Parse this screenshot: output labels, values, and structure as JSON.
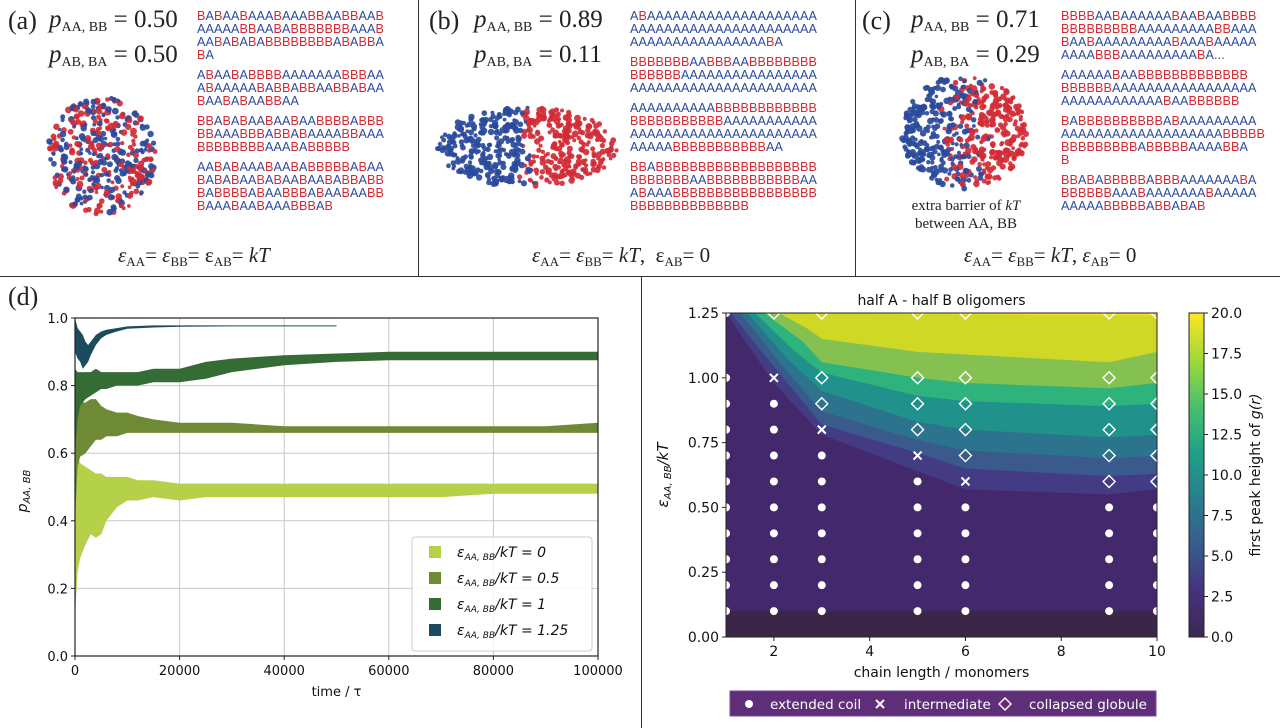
{
  "panels_top": [
    {
      "label": "(a)",
      "p_AA_BB": "0.50",
      "p_AB_BA": "0.50",
      "sequences": [
        [
          "BABAABAAABAAABBAABBAAB",
          "AAAAABBAABABBBBBBBAAAB",
          "AABABABABBBBBBBBABABBA",
          "BA"
        ],
        [
          "ABAABABBBBAAAAAAABBBAA",
          "ABAAAAABABBABBAABBABAA",
          "BAABABAABBAA"
        ],
        [
          "BBABABAABAABAABBBBABBB",
          "BBAAABBBABBABAAAABBAAA",
          "BBBBBBBBAAABABBBBB"
        ],
        [
          "AABABAAABAABABBBBBABAA",
          "BABABAABABAABAABABBABB",
          "BABBBBABAABBBABAABAABB",
          "BAAABAABAAABBBAB"
        ]
      ],
      "equation": {
        "parts": [
          "ε",
          "AA",
          "= ε",
          "BB",
          "= ε",
          "AB",
          "= ",
          "kT",
          ""
        ]
      },
      "equation_text": "εAA = εBB = εAB = kT",
      "molecule": "mixed-globule"
    },
    {
      "label": "(b)",
      "p_AA_BB": "0.89",
      "p_AB_BA": "0.11",
      "sequences": [
        [
          "ABAAAAAAAAAAAAAAAAAAAA",
          "AAAAAAAAAAAAAAAAAAAAAA",
          "AAAAAAAAAAAAAAAABA"
        ],
        [
          "BBBBBBBAABBBAABBBBBBBB",
          "BBBBBBAAAAAAAAAAAAAAAA",
          "AAAAAAAAAAAAAAAAAAAAAA"
        ],
        [
          "AAAAAAAAAABBBBBBBBBBBB",
          "BBBBBBBBBBBAAAAAAAAAAA",
          "AAAAAAAAAAAAAAAAAAAAAA",
          "AAAAABBBBBBBBBBBAA"
        ],
        [
          "BBABBBBBBBBBBBBBBBBBBB",
          "BBBBBBBAABBBBBBBBBBBAA",
          "ABAAABBBBBBBBBBBBBBBBB",
          "BBBBBBBBBBBBBB"
        ]
      ],
      "equation_text": "εAA = εBB = kT,  εAB = 0",
      "molecule": "phase-separated-blob"
    },
    {
      "label": "(c)",
      "p_AA_BB": "0.71",
      "p_AB_BA": "0.29",
      "sequences": [
        [
          "BBBBAABAAAAAABAABAABBBB",
          "BBBBBBBBBAAAAAAAAABBAAA",
          "BAABAAAAAAAAABAAABAAAAA",
          "AAAABBBAAAAAAAAABA..."
        ],
        [
          "AAAAAABAABBBBBBBBBBBBB",
          "BBBBBBAAAAAAAAAAAAAAAAA",
          "AAAAAAAAAAAABAABBBBBB"
        ],
        [
          "BABBBBBBBBBBABAAAAAAAAA",
          "AAAAAAAAAAAAAAAAAAABBBBB",
          "BBBBBBBBBABBBBBAAAABBA",
          "B"
        ],
        [
          "BBABABBBBBABBBAAAAAAABA",
          "BBBBBBAAABAAAAAAABAAAAA",
          "AAAAABBBBBABBABAB"
        ]
      ],
      "note_line1": "extra barrier of",
      "note_kT": "kT",
      "note_line2": "between AA, BB",
      "equation_text": "εAA = εBB = kT, εAB = 0",
      "molecule": "partially-separated-globule"
    }
  ],
  "sym": {
    "p": "p",
    "AA_BB": "AA, BB",
    "AB_BA": "AB, BA",
    "eq": " = ",
    "eps": "ε",
    "AA": "AA",
    "BB": "BB",
    "AB": "AB",
    "kT": "kT",
    "zero": "0",
    "comma": ", "
  },
  "colors": {
    "A_monomer": "#2a4a9c",
    "B_monomer": "#d32b35",
    "series_0": "#b5d14a",
    "series_0_5": "#6e8a34",
    "series_1": "#356b34",
    "series_1_25": "#1c4b5e",
    "legend_bar_bg": "#5e2f78"
  },
  "chart_data": [
    {
      "panel_label": "(d)",
      "type": "area",
      "title": "",
      "xlabel": "time / τ",
      "ylabel": "p_AA,BB",
      "ylabel_main": "p",
      "ylabel_sub": "AA, BB",
      "xlim": [
        0,
        100000
      ],
      "ylim": [
        0.0,
        1.0
      ],
      "xticks": [
        "0",
        "20000",
        "40000",
        "60000",
        "80000",
        "100000"
      ],
      "xtick_values": [
        0,
        20000,
        40000,
        60000,
        80000,
        100000
      ],
      "yticks": [
        "0.0",
        "0.2",
        "0.4",
        "0.6",
        "0.8",
        "1.0"
      ],
      "ytick_values": [
        0,
        0.2,
        0.4,
        0.6,
        0.8,
        1.0
      ],
      "grid": true,
      "legend_position": "lower-right",
      "series": [
        {
          "name": "ε_AA,BB/kT = 0",
          "legend_main": "ε",
          "legend_sub": "AA, BB",
          "legend_rest": "/kT = 0",
          "color": "#b5d14a",
          "x": [
            0,
            500,
            1000,
            2000,
            3000,
            4000,
            5000,
            6000,
            8000,
            10000,
            12000,
            15000,
            20000,
            25000,
            30000,
            40000,
            50000,
            60000,
            70000,
            80000,
            90000,
            100000
          ],
          "upper": [
            0.6,
            0.59,
            0.57,
            0.56,
            0.55,
            0.54,
            0.54,
            0.53,
            0.53,
            0.53,
            0.52,
            0.52,
            0.51,
            0.51,
            0.51,
            0.51,
            0.51,
            0.51,
            0.51,
            0.51,
            0.51,
            0.51
          ],
          "lower": [
            0.12,
            0.25,
            0.29,
            0.33,
            0.36,
            0.35,
            0.36,
            0.4,
            0.44,
            0.46,
            0.46,
            0.47,
            0.46,
            0.47,
            0.47,
            0.47,
            0.47,
            0.47,
            0.47,
            0.48,
            0.48,
            0.48
          ]
        },
        {
          "name": "ε_AA,BB/kT = 0.5",
          "legend_main": "ε",
          "legend_sub": "AA, BB",
          "legend_rest": "/kT = 0.5",
          "color": "#6e8a34",
          "x": [
            0,
            500,
            1000,
            2000,
            3000,
            4000,
            5000,
            6000,
            8000,
            10000,
            12000,
            15000,
            20000,
            25000,
            30000,
            40000,
            50000,
            60000,
            70000,
            80000,
            90000,
            100000
          ],
          "upper": [
            0.76,
            0.74,
            0.75,
            0.75,
            0.76,
            0.76,
            0.74,
            0.73,
            0.72,
            0.72,
            0.71,
            0.7,
            0.69,
            0.69,
            0.69,
            0.68,
            0.68,
            0.68,
            0.68,
            0.68,
            0.68,
            0.69
          ],
          "lower": [
            0.4,
            0.56,
            0.59,
            0.6,
            0.62,
            0.64,
            0.64,
            0.65,
            0.65,
            0.66,
            0.66,
            0.66,
            0.66,
            0.66,
            0.66,
            0.66,
            0.66,
            0.66,
            0.66,
            0.66,
            0.66,
            0.66
          ]
        },
        {
          "name": "ε_AA,BB/kT = 1",
          "legend_main": "ε",
          "legend_sub": "AA, BB",
          "legend_rest": "/kT = 1",
          "color": "#356b34",
          "x": [
            0,
            500,
            1000,
            2000,
            3000,
            4000,
            5000,
            6000,
            8000,
            10000,
            12000,
            15000,
            20000,
            25000,
            30000,
            40000,
            50000,
            60000,
            70000,
            80000,
            90000,
            100000
          ],
          "upper": [
            0.85,
            0.84,
            0.84,
            0.84,
            0.84,
            0.85,
            0.84,
            0.84,
            0.84,
            0.84,
            0.84,
            0.85,
            0.85,
            0.87,
            0.88,
            0.89,
            0.895,
            0.9,
            0.9,
            0.9,
            0.9,
            0.9
          ],
          "lower": [
            0.6,
            0.7,
            0.74,
            0.76,
            0.77,
            0.78,
            0.79,
            0.79,
            0.8,
            0.8,
            0.8,
            0.81,
            0.81,
            0.82,
            0.84,
            0.86,
            0.87,
            0.875,
            0.875,
            0.875,
            0.875,
            0.875
          ]
        },
        {
          "name": "ε_AA,BB/kT = 1.25",
          "legend_main": "ε",
          "legend_sub": "AA, BB",
          "legend_rest": "/kT = 1.25",
          "color": "#1c4b5e",
          "x": [
            0,
            500,
            1000,
            1500,
            2000,
            2500,
            3000,
            4000,
            5000,
            6000,
            8000,
            10000,
            15000,
            20000,
            30000,
            40000,
            50000
          ],
          "upper": [
            1.0,
            0.97,
            0.96,
            0.95,
            0.93,
            0.92,
            0.93,
            0.95,
            0.96,
            0.965,
            0.97,
            0.975,
            0.978,
            0.978,
            0.978,
            0.978,
            0.978
          ],
          "lower": [
            0.9,
            0.88,
            0.87,
            0.85,
            0.86,
            0.87,
            0.89,
            0.92,
            0.94,
            0.95,
            0.96,
            0.968,
            0.972,
            0.974,
            0.975,
            0.975,
            0.975
          ]
        }
      ]
    },
    {
      "panel_label": "(e)",
      "type": "heatmap",
      "title": "half A - half B oligomers",
      "xlabel": "chain length / monomers",
      "ylabel": "ε_AA,BB/kT",
      "ylabel_main": "ε",
      "ylabel_sub": "AA, BB",
      "ylabel_rest": "/kT",
      "xlim": [
        1,
        10
      ],
      "ylim": [
        0.0,
        1.25
      ],
      "xticks": [
        "2",
        "4",
        "6",
        "8",
        "10"
      ],
      "xtick_values": [
        2,
        4,
        6,
        8,
        10
      ],
      "yticks": [
        "0.00",
        "0.25",
        "0.50",
        "0.75",
        "1.00",
        "1.25"
      ],
      "ytick_values": [
        0,
        0.25,
        0.5,
        0.75,
        1.0,
        1.25
      ],
      "grid": false,
      "colorbar": {
        "label": "first peak height of g(r)",
        "label_main": "first peak height of ",
        "label_g": "g",
        "label_r": "(r)",
        "range": [
          0.0,
          20.0
        ],
        "ticks": [
          "0.0",
          "2.5",
          "5.0",
          "7.5",
          "10.0",
          "12.5",
          "15.0",
          "17.5",
          "20.0"
        ],
        "tick_values": [
          0,
          2.5,
          5,
          7.5,
          10,
          12.5,
          15,
          17.5,
          20
        ],
        "colormap": "viridis",
        "levels": [
          "#3b2855",
          "#43286b",
          "#433b84",
          "#3b5a8c",
          "#2c738e",
          "#21918c",
          "#2eb37c",
          "#84c150",
          "#d0d826",
          "#f4e01f"
        ]
      },
      "contour_boundaries": [
        {
          "level": 2.5,
          "points": [
            [
              1,
              1.25
            ],
            [
              2,
              0.98
            ],
            [
              3,
              0.78
            ],
            [
              5,
              0.64
            ],
            [
              6,
              0.57
            ],
            [
              9,
              0.55
            ],
            [
              10,
              0.57
            ]
          ]
        },
        {
          "level": 5.0,
          "points": [
            [
              1.1,
              1.25
            ],
            [
              2.1,
              1.02
            ],
            [
              3,
              0.82
            ],
            [
              5,
              0.71
            ],
            [
              6,
              0.65
            ],
            [
              9,
              0.62
            ],
            [
              10,
              0.63
            ]
          ]
        },
        {
          "level": 7.5,
          "points": [
            [
              1.3,
              1.25
            ],
            [
              2.2,
              1.04
            ],
            [
              3,
              0.87
            ],
            [
              5,
              0.76
            ],
            [
              6,
              0.72
            ],
            [
              9,
              0.69
            ],
            [
              10,
              0.7
            ]
          ]
        },
        {
          "level": 10.0,
          "points": [
            [
              1.45,
              1.25
            ],
            [
              2.3,
              1.07
            ],
            [
              3,
              0.95
            ],
            [
              5,
              0.83
            ],
            [
              6,
              0.8
            ],
            [
              9,
              0.77
            ],
            [
              10,
              0.78
            ]
          ]
        },
        {
          "level": 12.5,
          "points": [
            [
              1.6,
              1.25
            ],
            [
              2.45,
              1.1
            ],
            [
              3,
              1.02
            ],
            [
              5,
              0.93
            ],
            [
              6,
              0.91
            ],
            [
              9,
              0.89
            ],
            [
              10,
              0.9
            ]
          ]
        },
        {
          "level": 15.0,
          "points": [
            [
              1.8,
              1.25
            ],
            [
              2.6,
              1.14
            ],
            [
              3,
              1.06
            ],
            [
              5,
              1.0
            ],
            [
              6,
              0.98
            ],
            [
              9,
              0.96
            ],
            [
              10,
              0.98
            ]
          ]
        },
        {
          "level": 17.5,
          "points": [
            [
              2.1,
              1.25
            ],
            [
              2.7,
              1.19
            ],
            [
              3,
              1.15
            ],
            [
              5,
              1.1
            ],
            [
              6,
              1.09
            ],
            [
              9,
              1.06
            ],
            [
              10,
              1.1
            ]
          ]
        },
        {
          "level": 20.0,
          "points": [
            [
              2.5,
              1.25
            ],
            [
              9,
              1.24
            ],
            [
              10,
              1.24
            ]
          ]
        }
      ],
      "bottom_band": {
        "ylim": [
          0,
          0.1
        ],
        "color": "#3b2647"
      },
      "markers": {
        "x": [
          1,
          2,
          3,
          5,
          6,
          9,
          10
        ],
        "y": [
          0.1,
          0.2,
          0.3,
          0.4,
          0.5,
          0.6,
          0.7,
          0.8,
          0.9,
          1.0,
          1.25
        ],
        "grid": [
          [
            "o",
            "o",
            "o",
            "o",
            "o",
            "o",
            "o"
          ],
          [
            "o",
            "o",
            "o",
            "o",
            "o",
            "o",
            "o"
          ],
          [
            "o",
            "o",
            "o",
            "o",
            "o",
            "o",
            "o"
          ],
          [
            "o",
            "o",
            "o",
            "o",
            "o",
            "o",
            "o"
          ],
          [
            "o",
            "o",
            "o",
            "o",
            "o",
            "o",
            "o"
          ],
          [
            "o",
            "o",
            "o",
            "o",
            "x",
            "d",
            "d"
          ],
          [
            "o",
            "o",
            "o",
            "x",
            "d",
            "d",
            "d"
          ],
          [
            "o",
            "o",
            "x",
            "d",
            "d",
            "d",
            "d"
          ],
          [
            "o",
            "o",
            "d",
            "d",
            "d",
            "d",
            "d"
          ],
          [
            "o",
            "x",
            "d",
            "d",
            "d",
            "d",
            "d"
          ],
          [
            "o",
            "d",
            "d",
            "d",
            "d",
            "d",
            "d"
          ]
        ]
      },
      "marker_legend": [
        {
          "symbol": "o",
          "glyph": "●",
          "label": "extended coil"
        },
        {
          "symbol": "x",
          "glyph": "✕",
          "label": "intermediate"
        },
        {
          "symbol": "d",
          "glyph": "◇",
          "label": "collapsed globule"
        }
      ]
    }
  ]
}
